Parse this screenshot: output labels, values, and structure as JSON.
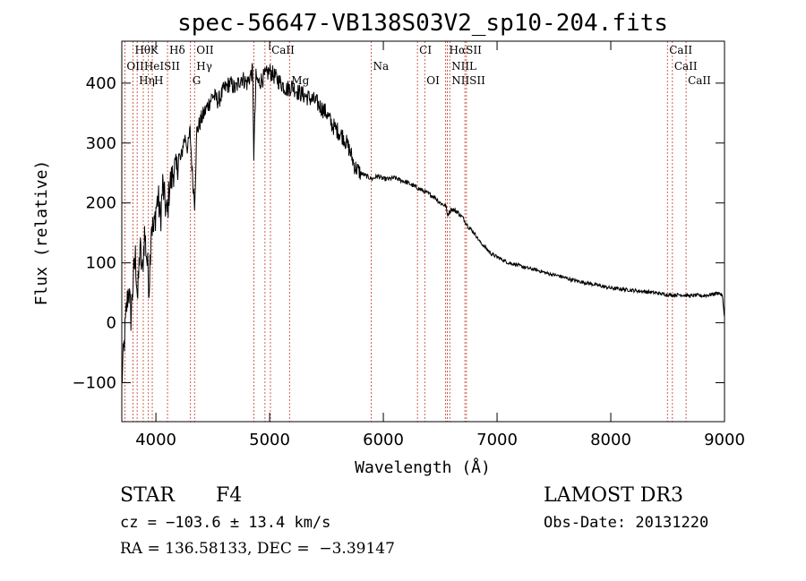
{
  "chart_data": {
    "type": "line",
    "title": "spec-56647-VB138S03V2_sp10-204.fits",
    "xlabel": "Wavelength (Å)",
    "ylabel": "Flux (relative)",
    "xlim": [
      3700,
      9000
    ],
    "ylim": [
      -165,
      470
    ],
    "xticks": [
      {
        "value": 4000,
        "label": "4000"
      },
      {
        "value": 5000,
        "label": "5000"
      },
      {
        "value": 6000,
        "label": "6000"
      },
      {
        "value": 7000,
        "label": "7000"
      },
      {
        "value": 8000,
        "label": "8000"
      },
      {
        "value": 9000,
        "label": "9000"
      }
    ],
    "yticks": [
      {
        "value": -100,
        "label": "−100"
      },
      {
        "value": 0,
        "label": "0"
      },
      {
        "value": 100,
        "label": "100"
      },
      {
        "value": 200,
        "label": "200"
      },
      {
        "value": 300,
        "label": "300"
      },
      {
        "value": 400,
        "label": "400"
      }
    ],
    "spectrum": [
      [
        3700,
        -100
      ],
      [
        3720,
        -40
      ],
      [
        3740,
        20
      ],
      [
        3760,
        60
      ],
      [
        3780,
        10
      ],
      [
        3800,
        70
      ],
      [
        3820,
        110
      ],
      [
        3840,
        40
      ],
      [
        3860,
        130
      ],
      [
        3880,
        80
      ],
      [
        3900,
        150
      ],
      [
        3920,
        110
      ],
      [
        3940,
        60
      ],
      [
        3960,
        170
      ],
      [
        3980,
        150
      ],
      [
        4000,
        190
      ],
      [
        4020,
        210
      ],
      [
        4040,
        170
      ],
      [
        4060,
        230
      ],
      [
        4080,
        200
      ],
      [
        4100,
        180
      ],
      [
        4120,
        230
      ],
      [
        4140,
        240
      ],
      [
        4160,
        260
      ],
      [
        4180,
        250
      ],
      [
        4200,
        280
      ],
      [
        4220,
        270
      ],
      [
        4240,
        300
      ],
      [
        4260,
        310
      ],
      [
        4280,
        290
      ],
      [
        4300,
        320
      ],
      [
        4320,
        250
      ],
      [
        4340,
        200
      ],
      [
        4360,
        320
      ],
      [
        4380,
        330
      ],
      [
        4400,
        340
      ],
      [
        4450,
        360
      ],
      [
        4500,
        380
      ],
      [
        4550,
        370
      ],
      [
        4600,
        390
      ],
      [
        4650,
        400
      ],
      [
        4700,
        390
      ],
      [
        4750,
        410
      ],
      [
        4800,
        400
      ],
      [
        4850,
        420
      ],
      [
        4861,
        280
      ],
      [
        4880,
        410
      ],
      [
        4900,
        400
      ],
      [
        4950,
        410
      ],
      [
        5000,
        420
      ],
      [
        5050,
        410
      ],
      [
        5100,
        400
      ],
      [
        5150,
        390
      ],
      [
        5200,
        395
      ],
      [
        5250,
        385
      ],
      [
        5300,
        380
      ],
      [
        5350,
        375
      ],
      [
        5400,
        370
      ],
      [
        5450,
        360
      ],
      [
        5500,
        350
      ],
      [
        5550,
        330
      ],
      [
        5600,
        320
      ],
      [
        5650,
        310
      ],
      [
        5700,
        290
      ],
      [
        5750,
        260
      ],
      [
        5800,
        250
      ],
      [
        5850,
        245
      ],
      [
        5900,
        240
      ],
      [
        5950,
        245
      ],
      [
        6000,
        240
      ],
      [
        6050,
        240
      ],
      [
        6100,
        242
      ],
      [
        6150,
        238
      ],
      [
        6200,
        235
      ],
      [
        6250,
        230
      ],
      [
        6300,
        225
      ],
      [
        6350,
        220
      ],
      [
        6400,
        215
      ],
      [
        6450,
        210
      ],
      [
        6500,
        200
      ],
      [
        6550,
        195
      ],
      [
        6563,
        180
      ],
      [
        6600,
        190
      ],
      [
        6650,
        185
      ],
      [
        6700,
        175
      ],
      [
        6750,
        160
      ],
      [
        6800,
        150
      ],
      [
        6850,
        135
      ],
      [
        6900,
        125
      ],
      [
        6950,
        115
      ],
      [
        7000,
        110
      ],
      [
        7050,
        105
      ],
      [
        7100,
        100
      ],
      [
        7150,
        98
      ],
      [
        7200,
        95
      ],
      [
        7250,
        92
      ],
      [
        7300,
        90
      ],
      [
        7350,
        88
      ],
      [
        7400,
        85
      ],
      [
        7450,
        82
      ],
      [
        7500,
        80
      ],
      [
        7550,
        78
      ],
      [
        7600,
        75
      ],
      [
        7650,
        72
      ],
      [
        7700,
        70
      ],
      [
        7750,
        68
      ],
      [
        7800,
        66
      ],
      [
        7850,
        64
      ],
      [
        7900,
        62
      ],
      [
        7950,
        60
      ],
      [
        8000,
        58
      ],
      [
        8050,
        57
      ],
      [
        8100,
        56
      ],
      [
        8150,
        55
      ],
      [
        8200,
        54
      ],
      [
        8250,
        53
      ],
      [
        8300,
        52
      ],
      [
        8350,
        51
      ],
      [
        8400,
        50
      ],
      [
        8450,
        48
      ],
      [
        8500,
        47
      ],
      [
        8550,
        46
      ],
      [
        8600,
        47
      ],
      [
        8650,
        46
      ],
      [
        8700,
        45
      ],
      [
        8750,
        46
      ],
      [
        8800,
        45
      ],
      [
        8850,
        46
      ],
      [
        8900,
        48
      ],
      [
        8950,
        50
      ],
      [
        8980,
        45
      ],
      [
        9000,
        10
      ]
    ],
    "lines": [
      {
        "name": "Hθ",
        "wavelength": 3798,
        "row": 0
      },
      {
        "name": "K",
        "wavelength": 3934,
        "row": 0
      },
      {
        "name": "Hδ",
        "wavelength": 4102,
        "row": 0
      },
      {
        "name": "OII",
        "wavelength": 4340,
        "row": 0
      },
      {
        "name": "CaII",
        "wavelength": 5000,
        "row": 0
      },
      {
        "name": "CI",
        "wavelength": 6300,
        "row": 0
      },
      {
        "name": "HαSII",
        "wavelength": 6563,
        "row": 0
      },
      {
        "name": "CaII",
        "wavelength": 8498,
        "row": 0
      },
      {
        "name": "OII",
        "wavelength": 3727,
        "row": 1
      },
      {
        "name": "HeISII",
        "wavelength": 3880,
        "row": 1
      },
      {
        "name": "Hγ",
        "wavelength": 4340,
        "row": 1
      },
      {
        "name": "Na",
        "wavelength": 5893,
        "row": 1
      },
      {
        "name": "NIIL",
        "wavelength": 6583,
        "row": 1
      },
      {
        "name": "CaII",
        "wavelength": 8542,
        "row": 1
      },
      {
        "name": "Hη",
        "wavelength": 3835,
        "row": 2
      },
      {
        "name": "H",
        "wavelength": 3968,
        "row": 2
      },
      {
        "name": "G",
        "wavelength": 4304,
        "row": 2
      },
      {
        "name": "Mg",
        "wavelength": 5175,
        "row": 2
      },
      {
        "name": "OI",
        "wavelength": 6364,
        "row": 2
      },
      {
        "name": "NIISII",
        "wavelength": 6584,
        "row": 2
      },
      {
        "name": "CaII",
        "wavelength": 8662,
        "row": 2
      }
    ],
    "marker_lines": [
      3727,
      3798,
      3835,
      3889,
      3934,
      3968,
      4102,
      4304,
      4340,
      4861,
      4959,
      5007,
      5175,
      5893,
      6300,
      6364,
      6548,
      6563,
      6584,
      6717,
      6731,
      8498,
      8542,
      8662
    ]
  },
  "info": {
    "object_class": "STAR",
    "subclass": "F4",
    "survey": "LAMOST DR3",
    "cz": "cz = −103.6 ± 13.4 km/s",
    "obs_date": "Obs-Date: 20131220",
    "radec": "RA = 136.58133, DEC =  −3.39147"
  }
}
